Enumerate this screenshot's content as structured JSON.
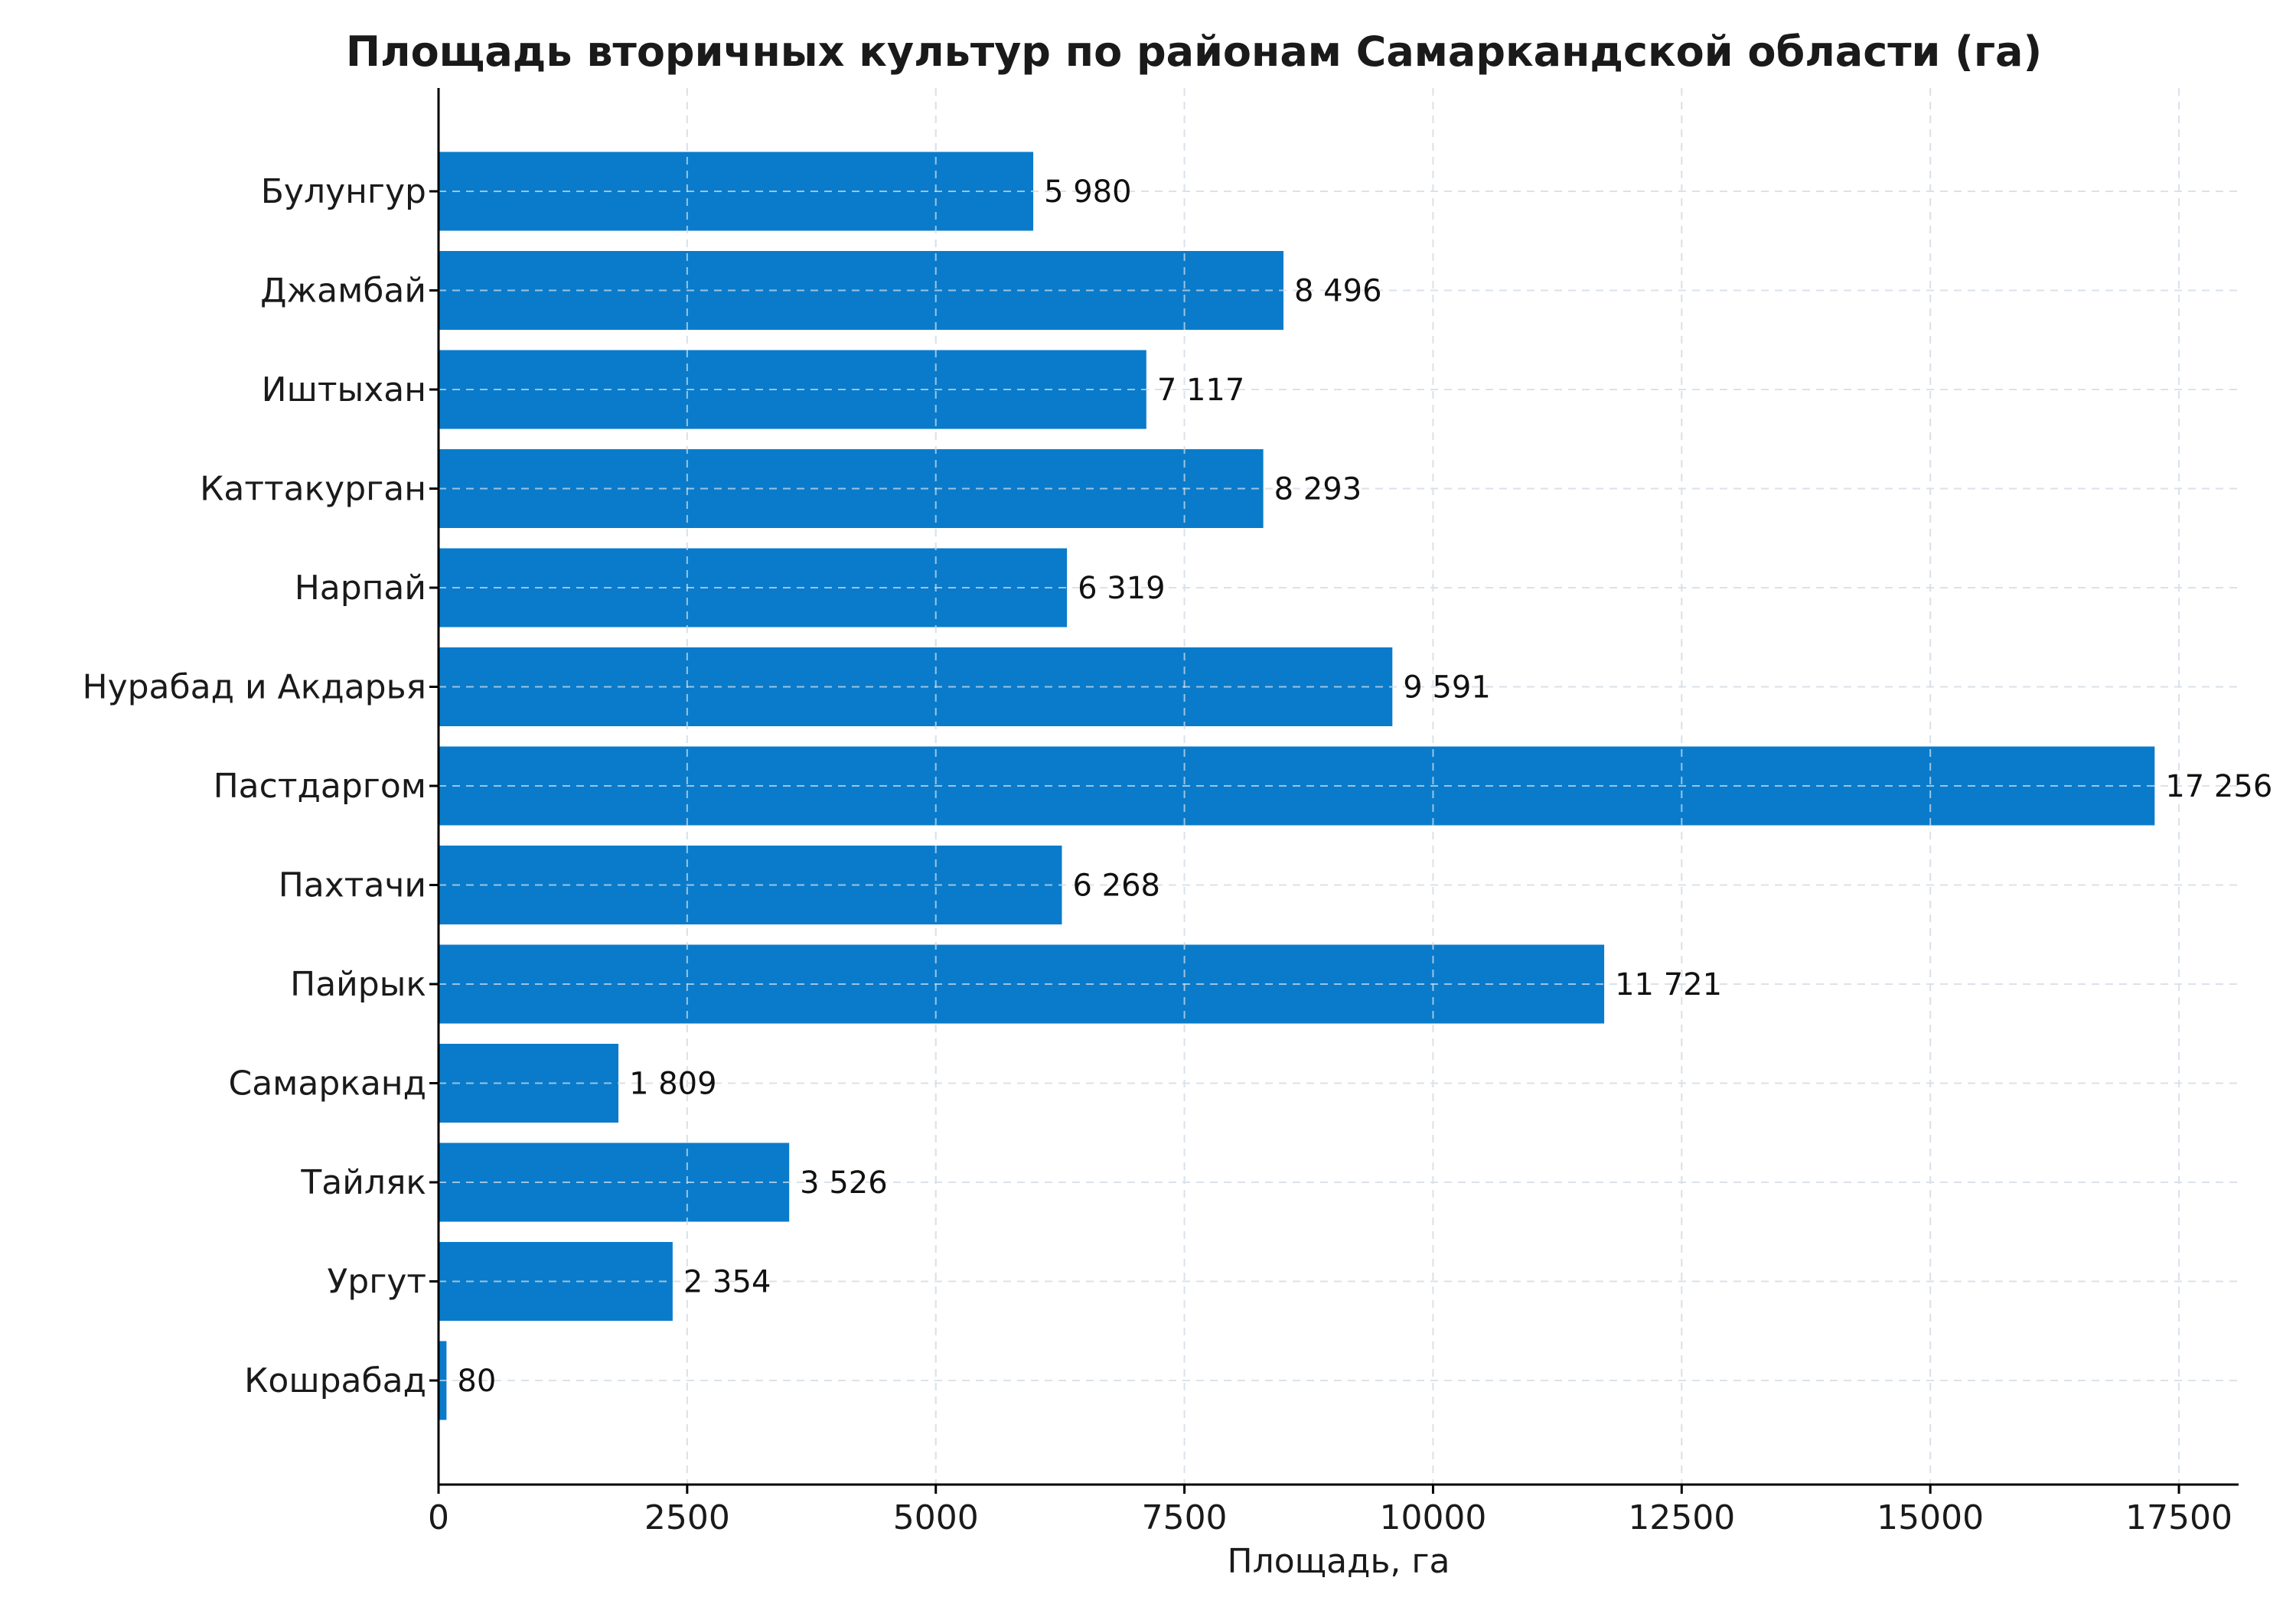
{
  "chart_data": {
    "type": "bar",
    "orientation": "horizontal",
    "title": "Площадь вторичных культур по районам Самаркандской области (га)",
    "xlabel": "Площадь, га",
    "ylabel": "",
    "xlim": [
      0,
      18100
    ],
    "xticks": [
      0,
      2500,
      5000,
      7500,
      10000,
      12500,
      15000,
      17500
    ],
    "xtick_labels": [
      "0",
      "2500",
      "5000",
      "7500",
      "10000",
      "12500",
      "15000",
      "17500"
    ],
    "grid": true,
    "bar_color": "#0a7bca",
    "categories": [
      "Булунгур",
      "Джамбай",
      "Иштыхан",
      "Каттакурган",
      "Нарпай",
      "Нурабад и Акдарья",
      "Пастдаргом",
      "Пахтачи",
      "Пайрык",
      "Самарканд",
      "Тайляк",
      "Ургут",
      "Кошрабад"
    ],
    "values": [
      5980,
      8496,
      7117,
      8293,
      6319,
      9591,
      17256,
      6268,
      11721,
      1809,
      3526,
      2354,
      80
    ],
    "value_labels": [
      "5 980",
      "8 496",
      "7 117",
      "8 293",
      "6 319",
      "9 591",
      "17 256",
      "6 268",
      "11 721",
      "1 809",
      "3 526",
      "2 354",
      "80"
    ]
  }
}
